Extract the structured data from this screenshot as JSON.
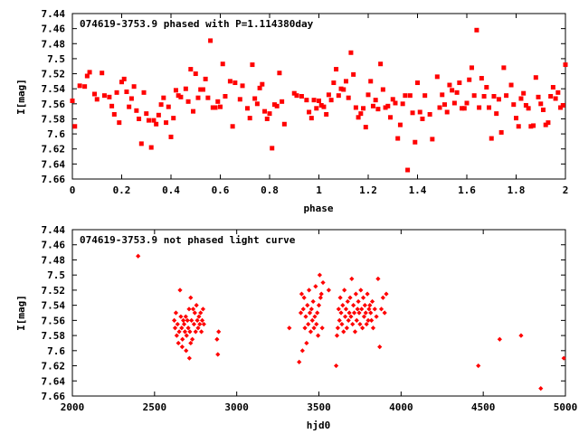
{
  "chart_data": [
    {
      "type": "scatter",
      "title": "074619-3753.9 phased with P=1.114380day",
      "xlabel": "phase",
      "ylabel": "I[mag]",
      "xlim": [
        0,
        2
      ],
      "ylim": [
        7.66,
        7.44
      ],
      "y_inverted": true,
      "xticks": [
        "0",
        "0.2",
        "0.4",
        "0.6",
        "0.8",
        "1",
        "1.2",
        "1.4",
        "1.6",
        "1.8",
        "2"
      ],
      "yticks": [
        "7.44",
        "7.46",
        "7.48",
        "7.5",
        "7.52",
        "7.54",
        "7.56",
        "7.58",
        "7.6",
        "7.62",
        "7.64",
        "7.66"
      ],
      "grid": false,
      "color": "#ff0000",
      "marker": "filled-square",
      "points": [
        [
          0.0,
          7.556
        ],
        [
          0.01,
          7.59
        ],
        [
          0.03,
          7.536
        ],
        [
          0.05,
          7.537
        ],
        [
          0.06,
          7.523
        ],
        [
          0.07,
          7.518
        ],
        [
          0.09,
          7.547
        ],
        [
          0.1,
          7.554
        ],
        [
          0.12,
          7.519
        ],
        [
          0.13,
          7.549
        ],
        [
          0.15,
          7.551
        ],
        [
          0.16,
          7.563
        ],
        [
          0.17,
          7.574
        ],
        [
          0.18,
          7.545
        ],
        [
          0.19,
          7.585
        ],
        [
          0.2,
          7.531
        ],
        [
          0.21,
          7.527
        ],
        [
          0.22,
          7.544
        ],
        [
          0.23,
          7.564
        ],
        [
          0.24,
          7.553
        ],
        [
          0.25,
          7.537
        ],
        [
          0.26,
          7.569
        ],
        [
          0.27,
          7.58
        ],
        [
          0.28,
          7.613
        ],
        [
          0.29,
          7.545
        ],
        [
          0.3,
          7.573
        ],
        [
          0.31,
          7.582
        ],
        [
          0.32,
          7.618
        ],
        [
          0.33,
          7.582
        ],
        [
          0.34,
          7.587
        ],
        [
          0.35,
          7.575
        ],
        [
          0.36,
          7.561
        ],
        [
          0.37,
          7.552
        ],
        [
          0.38,
          7.585
        ],
        [
          0.39,
          7.564
        ],
        [
          0.4,
          7.604
        ],
        [
          0.41,
          7.579
        ],
        [
          0.42,
          7.542
        ],
        [
          0.43,
          7.549
        ],
        [
          0.44,
          7.551
        ],
        [
          0.46,
          7.54
        ],
        [
          0.47,
          7.557
        ],
        [
          0.48,
          7.514
        ],
        [
          0.49,
          7.57
        ],
        [
          0.5,
          7.52
        ],
        [
          0.51,
          7.552
        ],
        [
          0.52,
          7.541
        ],
        [
          0.53,
          7.541
        ],
        [
          0.54,
          7.527
        ],
        [
          0.55,
          7.552
        ],
        [
          0.56,
          7.476
        ],
        [
          0.57,
          7.565
        ],
        [
          0.58,
          7.565
        ],
        [
          0.59,
          7.557
        ],
        [
          0.6,
          7.564
        ],
        [
          0.61,
          7.507
        ],
        [
          0.62,
          7.55
        ],
        [
          0.64,
          7.53
        ],
        [
          0.65,
          7.59
        ],
        [
          0.66,
          7.532
        ],
        [
          0.68,
          7.554
        ],
        [
          0.69,
          7.536
        ],
        [
          0.71,
          7.566
        ],
        [
          0.72,
          7.579
        ],
        [
          0.73,
          7.508
        ],
        [
          0.74,
          7.553
        ],
        [
          0.75,
          7.56
        ],
        [
          0.76,
          7.539
        ],
        [
          0.77,
          7.534
        ],
        [
          0.78,
          7.57
        ],
        [
          0.79,
          7.58
        ],
        [
          0.8,
          7.573
        ],
        [
          0.81,
          7.619
        ],
        [
          0.82,
          7.561
        ],
        [
          0.83,
          7.563
        ],
        [
          0.84,
          7.519
        ],
        [
          0.85,
          7.557
        ],
        [
          0.86,
          7.587
        ],
        [
          0.9,
          7.546
        ],
        [
          0.91,
          7.549
        ],
        [
          0.93,
          7.55
        ],
        [
          0.95,
          7.555
        ],
        [
          0.96,
          7.571
        ],
        [
          0.97,
          7.579
        ],
        [
          0.98,
          7.555
        ],
        [
          0.99,
          7.566
        ],
        [
          1.0,
          7.556
        ],
        [
          1.01,
          7.562
        ],
        [
          1.02,
          7.564
        ],
        [
          1.03,
          7.574
        ],
        [
          1.04,
          7.548
        ],
        [
          1.05,
          7.555
        ],
        [
          1.06,
          7.532
        ],
        [
          1.07,
          7.514
        ],
        [
          1.08,
          7.549
        ],
        [
          1.09,
          7.54
        ],
        [
          1.1,
          7.541
        ],
        [
          1.11,
          7.53
        ],
        [
          1.12,
          7.552
        ],
        [
          1.13,
          7.492
        ],
        [
          1.14,
          7.521
        ],
        [
          1.15,
          7.565
        ],
        [
          1.16,
          7.578
        ],
        [
          1.17,
          7.573
        ],
        [
          1.18,
          7.566
        ],
        [
          1.19,
          7.591
        ],
        [
          1.2,
          7.548
        ],
        [
          1.21,
          7.53
        ],
        [
          1.22,
          7.563
        ],
        [
          1.23,
          7.555
        ],
        [
          1.24,
          7.567
        ],
        [
          1.25,
          7.507
        ],
        [
          1.26,
          7.541
        ],
        [
          1.27,
          7.565
        ],
        [
          1.28,
          7.563
        ],
        [
          1.29,
          7.578
        ],
        [
          1.3,
          7.554
        ],
        [
          1.31,
          7.559
        ],
        [
          1.32,
          7.606
        ],
        [
          1.33,
          7.588
        ],
        [
          1.34,
          7.56
        ],
        [
          1.35,
          7.549
        ],
        [
          1.36,
          7.648
        ],
        [
          1.37,
          7.549
        ],
        [
          1.38,
          7.572
        ],
        [
          1.39,
          7.611
        ],
        [
          1.4,
          7.532
        ],
        [
          1.41,
          7.571
        ],
        [
          1.42,
          7.58
        ],
        [
          1.43,
          7.549
        ],
        [
          1.45,
          7.574
        ],
        [
          1.46,
          7.607
        ],
        [
          1.48,
          7.524
        ],
        [
          1.49,
          7.565
        ],
        [
          1.5,
          7.548
        ],
        [
          1.51,
          7.561
        ],
        [
          1.52,
          7.571
        ],
        [
          1.53,
          7.535
        ],
        [
          1.54,
          7.542
        ],
        [
          1.55,
          7.559
        ],
        [
          1.56,
          7.545
        ],
        [
          1.57,
          7.532
        ],
        [
          1.58,
          7.566
        ],
        [
          1.59,
          7.566
        ],
        [
          1.6,
          7.559
        ],
        [
          1.61,
          7.528
        ],
        [
          1.62,
          7.512
        ],
        [
          1.63,
          7.549
        ],
        [
          1.64,
          7.462
        ],
        [
          1.65,
          7.565
        ],
        [
          1.66,
          7.526
        ],
        [
          1.67,
          7.55
        ],
        [
          1.68,
          7.538
        ],
        [
          1.69,
          7.565
        ],
        [
          1.7,
          7.606
        ],
        [
          1.71,
          7.55
        ],
        [
          1.72,
          7.573
        ],
        [
          1.73,
          7.554
        ],
        [
          1.74,
          7.598
        ],
        [
          1.75,
          7.512
        ],
        [
          1.76,
          7.549
        ],
        [
          1.78,
          7.535
        ],
        [
          1.79,
          7.561
        ],
        [
          1.8,
          7.579
        ],
        [
          1.81,
          7.59
        ],
        [
          1.82,
          7.553
        ],
        [
          1.83,
          7.546
        ],
        [
          1.84,
          7.562
        ],
        [
          1.85,
          7.566
        ],
        [
          1.86,
          7.59
        ],
        [
          1.87,
          7.589
        ],
        [
          1.88,
          7.525
        ],
        [
          1.89,
          7.551
        ],
        [
          1.9,
          7.56
        ],
        [
          1.91,
          7.568
        ],
        [
          1.92,
          7.588
        ],
        [
          1.93,
          7.585
        ],
        [
          1.94,
          7.55
        ],
        [
          1.95,
          7.538
        ],
        [
          1.96,
          7.553
        ],
        [
          1.97,
          7.545
        ],
        [
          1.98,
          7.565
        ],
        [
          1.99,
          7.562
        ],
        [
          2.0,
          7.508
        ]
      ]
    },
    {
      "type": "scatter",
      "title": "074619-3753.9 not phased light curve",
      "xlabel": "hjd0",
      "ylabel": "I[mag]",
      "xlim": [
        2000,
        5000
      ],
      "ylim": [
        7.66,
        7.44
      ],
      "y_inverted": true,
      "xticks": [
        "2000",
        "2500",
        "3000",
        "3500",
        "4000",
        "4500",
        "5000"
      ],
      "yticks": [
        "7.44",
        "7.46",
        "7.48",
        "7.5",
        "7.52",
        "7.54",
        "7.56",
        "7.58",
        "7.6",
        "7.62",
        "7.64",
        "7.66"
      ],
      "grid": false,
      "color": "#ff0000",
      "marker": "filled-diamond",
      "points": [
        [
          2400,
          7.475
        ],
        [
          2620,
          7.56
        ],
        [
          2625,
          7.57
        ],
        [
          2630,
          7.55
        ],
        [
          2635,
          7.58
        ],
        [
          2640,
          7.565
        ],
        [
          2645,
          7.59
        ],
        [
          2650,
          7.575
        ],
        [
          2655,
          7.52
        ],
        [
          2660,
          7.555
        ],
        [
          2665,
          7.57
        ],
        [
          2670,
          7.585
        ],
        [
          2675,
          7.56
        ],
        [
          2680,
          7.565
        ],
        [
          2685,
          7.575
        ],
        [
          2690,
          7.555
        ],
        [
          2695,
          7.58
        ],
        [
          2700,
          7.56
        ],
        [
          2705,
          7.57
        ],
        [
          2710,
          7.545
        ],
        [
          2712,
          7.61
        ],
        [
          2715,
          7.575
        ],
        [
          2720,
          7.53
        ],
        [
          2725,
          7.56
        ],
        [
          2730,
          7.585
        ],
        [
          2735,
          7.545
        ],
        [
          2740,
          7.565
        ],
        [
          2745,
          7.55
        ],
        [
          2750,
          7.575
        ],
        [
          2755,
          7.54
        ],
        [
          2760,
          7.56
        ],
        [
          2765,
          7.57
        ],
        [
          2770,
          7.555
        ],
        [
          2775,
          7.565
        ],
        [
          2780,
          7.55
        ],
        [
          2785,
          7.575
        ],
        [
          2790,
          7.56
        ],
        [
          2795,
          7.545
        ],
        [
          2800,
          7.565
        ],
        [
          2668,
          7.595
        ],
        [
          2692,
          7.6
        ],
        [
          2720,
          7.59
        ],
        [
          2880,
          7.585
        ],
        [
          2885,
          7.605
        ],
        [
          2890,
          7.575
        ],
        [
          3320,
          7.57
        ],
        [
          3380,
          7.615
        ],
        [
          3390,
          7.55
        ],
        [
          3395,
          7.525
        ],
        [
          3400,
          7.6
        ],
        [
          3405,
          7.545
        ],
        [
          3410,
          7.53
        ],
        [
          3415,
          7.57
        ],
        [
          3420,
          7.555
        ],
        [
          3425,
          7.59
        ],
        [
          3430,
          7.54
        ],
        [
          3435,
          7.565
        ],
        [
          3440,
          7.52
        ],
        [
          3445,
          7.55
        ],
        [
          3450,
          7.575
        ],
        [
          3455,
          7.545
        ],
        [
          3460,
          7.56
        ],
        [
          3465,
          7.535
        ],
        [
          3470,
          7.57
        ],
        [
          3475,
          7.555
        ],
        [
          3480,
          7.515
        ],
        [
          3485,
          7.565
        ],
        [
          3490,
          7.55
        ],
        [
          3495,
          7.58
        ],
        [
          3500,
          7.54
        ],
        [
          3505,
          7.5
        ],
        [
          3510,
          7.53
        ],
        [
          3515,
          7.525
        ],
        [
          3520,
          7.57
        ],
        [
          3525,
          7.51
        ],
        [
          3560,
          7.52
        ],
        [
          3605,
          7.62
        ],
        [
          3610,
          7.58
        ],
        [
          3615,
          7.57
        ],
        [
          3620,
          7.545
        ],
        [
          3625,
          7.56
        ],
        [
          3630,
          7.53
        ],
        [
          3635,
          7.55
        ],
        [
          3640,
          7.565
        ],
        [
          3645,
          7.54
        ],
        [
          3650,
          7.575
        ],
        [
          3655,
          7.52
        ],
        [
          3660,
          7.555
        ],
        [
          3665,
          7.545
        ],
        [
          3670,
          7.57
        ],
        [
          3675,
          7.535
        ],
        [
          3680,
          7.56
        ],
        [
          3685,
          7.55
        ],
        [
          3690,
          7.53
        ],
        [
          3695,
          7.555
        ],
        [
          3700,
          7.505
        ],
        [
          3705,
          7.565
        ],
        [
          3710,
          7.54
        ],
        [
          3715,
          7.55
        ],
        [
          3720,
          7.575
        ],
        [
          3725,
          7.525
        ],
        [
          3730,
          7.56
        ],
        [
          3735,
          7.545
        ],
        [
          3740,
          7.535
        ],
        [
          3745,
          7.55
        ],
        [
          3750,
          7.565
        ],
        [
          3755,
          7.52
        ],
        [
          3760,
          7.545
        ],
        [
          3765,
          7.57
        ],
        [
          3770,
          7.53
        ],
        [
          3775,
          7.555
        ],
        [
          3780,
          7.54
        ],
        [
          3785,
          7.55
        ],
        [
          3790,
          7.565
        ],
        [
          3795,
          7.525
        ],
        [
          3800,
          7.56
        ],
        [
          3805,
          7.545
        ],
        [
          3810,
          7.54
        ],
        [
          3815,
          7.55
        ],
        [
          3820,
          7.56
        ],
        [
          3825,
          7.535
        ],
        [
          3830,
          7.57
        ],
        [
          3840,
          7.545
        ],
        [
          3850,
          7.555
        ],
        [
          3860,
          7.505
        ],
        [
          3870,
          7.595
        ],
        [
          3880,
          7.545
        ],
        [
          3890,
          7.53
        ],
        [
          3900,
          7.55
        ],
        [
          3910,
          7.525
        ],
        [
          4470,
          7.62
        ],
        [
          4600,
          7.585
        ],
        [
          4730,
          7.58
        ],
        [
          4850,
          7.65
        ],
        [
          4990,
          7.61
        ]
      ]
    }
  ]
}
